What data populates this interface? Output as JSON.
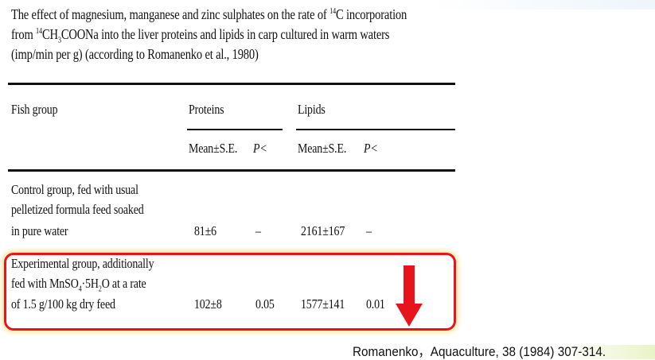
{
  "title": {
    "line1_a": "The effect of magnesium, manganese and zinc sulphates on the rate of ",
    "line1_sup": "14",
    "line1_b": "C incorporation",
    "line2_a": "from ",
    "line2_sup": "14",
    "line2_b": "CH",
    "line2_sub": "3",
    "line2_c": "COONa into the liver proteins and lipids in carp cultured in warm waters",
    "line3": "(imp/min per g) (according to Romanenko et al., 1980)"
  },
  "table": {
    "headers": {
      "fish_group": "Fish group",
      "proteins": "Proteins",
      "lipids": "Lipids",
      "mean_se": "Mean±S.E.",
      "p": "P<"
    },
    "rows": [
      {
        "group_lines": [
          "Control group, fed with usual",
          "pelletized formula feed soaked",
          "in pure water"
        ],
        "protein_mean": "81±6",
        "protein_p": "–",
        "lipid_mean": "2161±167",
        "lipid_p": "–"
      },
      {
        "group_lines": [
          "Experimental group, additionally",
          "fed with MnSO",
          "4",
          "·5H",
          "2",
          "O at a rate",
          "of 1.5 g/100 kg dry feed"
        ],
        "protein_mean": "102±8",
        "protein_p": "0.05",
        "lipid_mean": "1577±141",
        "lipid_p": "0.01",
        "highlighted": true
      }
    ]
  },
  "annotation": {
    "highlight_color": "#e8141c",
    "arrow": "down-arrow-icon"
  },
  "citation": "Romanenko，Aquaculture, 38 (1984) 307-314."
}
